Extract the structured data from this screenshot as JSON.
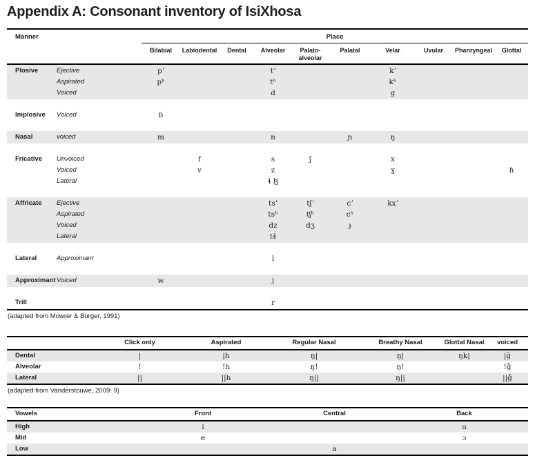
{
  "page": {
    "title": "Appendix A: Consonant inventory of IsiXhosa"
  },
  "consonant_table": {
    "manner_header": "Manner",
    "place_header": "Place",
    "columns": [
      "Bilabial",
      "Labiodental",
      "Dental",
      "Alveolar",
      "Palato-alveolar",
      "Palatal",
      "Velar",
      "Uvular",
      "Phanryngeal",
      "Glottal"
    ],
    "groups": [
      {
        "manner": "Plosive",
        "shaded": true,
        "rows": [
          {
            "label": "Ejective",
            "cells": [
              "pʼ",
              "",
              "",
              "tʼ",
              "",
              "",
              "kʼ",
              "",
              "",
              ""
            ]
          },
          {
            "label": "Aspirated",
            "cells": [
              "pʰ",
              "",
              "",
              "tʰ",
              "",
              "",
              "kʰ",
              "",
              "",
              ""
            ]
          },
          {
            "label": "Voiced",
            "cells": [
              "",
              "",
              "",
              "d",
              "",
              "",
              "g",
              "",
              "",
              ""
            ]
          }
        ]
      },
      {
        "manner": "Implosive",
        "shaded": false,
        "rows": [
          {
            "label": "Voiced",
            "cells": [
              "ɓ",
              "",
              "",
              "",
              "",
              "",
              "",
              "",
              "",
              ""
            ]
          }
        ]
      },
      {
        "manner": "Nasal",
        "shaded": true,
        "rows": [
          {
            "label": "voiced",
            "cells": [
              "m",
              "",
              "",
              "n",
              "",
              "ɲ",
              "ŋ",
              "",
              "",
              ""
            ]
          }
        ]
      },
      {
        "manner": "Fricative",
        "shaded": false,
        "rows": [
          {
            "label": "Unvoiced",
            "cells": [
              "",
              "f",
              "",
              "s",
              "ʃ",
              "",
              "x",
              "",
              "",
              ""
            ]
          },
          {
            "label": "Voiced",
            "cells": [
              "",
              "v",
              "",
              "z",
              "",
              "",
              "ɣ",
              "",
              "",
              "ɦ"
            ]
          },
          {
            "label": "Lateral",
            "cells": [
              "",
              "",
              "",
              "ɬ ɮ",
              "",
              "",
              "",
              "",
              "",
              ""
            ]
          }
        ]
      },
      {
        "manner": "Affricate",
        "shaded": true,
        "rows": [
          {
            "label": "Ejective",
            "cells": [
              "",
              "",
              "",
              "tsʼ",
              "tʃʼ",
              "cʼ",
              "kxʼ",
              "",
              "",
              ""
            ]
          },
          {
            "label": "Aspirated",
            "cells": [
              "",
              "",
              "",
              "tsʰ",
              "tʃʰ",
              "cʰ",
              "",
              "",
              "",
              ""
            ]
          },
          {
            "label": "Voiced",
            "cells": [
              "",
              "",
              "",
              "dz",
              "dʒ",
              "ɟ",
              "",
              "",
              "",
              ""
            ]
          },
          {
            "label": "Lateral",
            "cells": [
              "",
              "",
              "",
              "tɬ",
              "",
              "",
              "",
              "",
              "",
              ""
            ]
          }
        ]
      },
      {
        "manner": "Lateral",
        "shaded": false,
        "rows": [
          {
            "label": "Approximant",
            "cells": [
              "",
              "",
              "",
              "l",
              "",
              "",
              "",
              "",
              "",
              ""
            ]
          }
        ]
      },
      {
        "manner": "Approximant",
        "shaded": true,
        "rows": [
          {
            "label": "Voiced",
            "cells": [
              "w",
              "",
              "",
              "j",
              "",
              "",
              "",
              "",
              "",
              ""
            ]
          }
        ]
      },
      {
        "manner": "Trill",
        "shaded": false,
        "rows": [
          {
            "label": "",
            "cells": [
              "",
              "",
              "",
              "r",
              "",
              "",
              "",
              "",
              "",
              ""
            ]
          }
        ]
      }
    ],
    "caption": "(adapted from Mowrer & Burger, 1991)"
  },
  "click_table": {
    "columns": [
      "Click only",
      "Aspirated",
      "Regular Nasal",
      "Breathy Nasal",
      "Glottal Nasal",
      "voiced"
    ],
    "rows": [
      {
        "label": "Dental",
        "shaded": true,
        "cells": [
          "|",
          "|h",
          "ŋ|",
          "ŋ|",
          "ŋk|",
          "|ĝ"
        ]
      },
      {
        "label": "Alveolar",
        "shaded": false,
        "cells": [
          "!",
          "!h",
          "ŋ!",
          "ŋ!",
          "",
          "!g̊"
        ]
      },
      {
        "label": "Lateral",
        "shaded": true,
        "cells": [
          "||",
          "||h",
          "ŋ||",
          "ŋ||",
          "",
          "||g̊"
        ]
      }
    ],
    "caption": "(adapted from Vanderstouwe, 2009: 9)"
  },
  "vowel_table": {
    "header": "Vowels",
    "columns": [
      "Front",
      "Central",
      "Back"
    ],
    "rows": [
      {
        "label": "High",
        "shaded": true,
        "cells": [
          "i",
          "",
          "u"
        ]
      },
      {
        "label": "Mid",
        "shaded": false,
        "cells": [
          "e",
          "",
          "ɔ"
        ]
      },
      {
        "label": "Low",
        "shaded": true,
        "cells": [
          "",
          "a",
          ""
        ]
      }
    ]
  }
}
